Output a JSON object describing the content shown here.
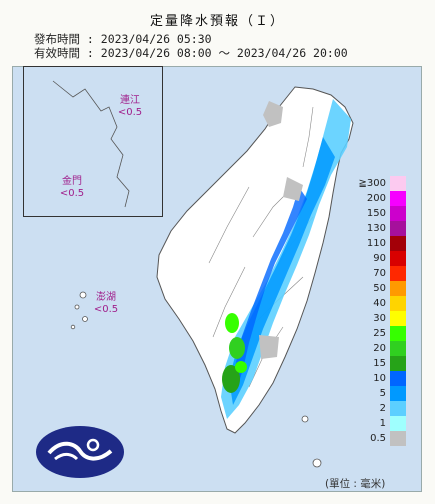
{
  "header": {
    "title": "定量降水預報（Ｉ）",
    "issue": "發布時間 : 2023/04/26 05:30",
    "valid": "有效時間 : 2023/04/26 08:00 ～ 2023/04/26 20:00"
  },
  "islands": [
    {
      "name": "連江",
      "value": "<0.5"
    },
    {
      "name": "金門",
      "value": "<0.5"
    },
    {
      "name": "澎湖",
      "value": "<0.5"
    }
  ],
  "legend": {
    "unit": "(單位 : 毫米)",
    "items": [
      {
        "label": "≧300",
        "color": "#fccaf0"
      },
      {
        "label": "200",
        "color": "#f600ff"
      },
      {
        "label": "150",
        "color": "#cc00cc"
      },
      {
        "label": "130",
        "color": "#a6109c"
      },
      {
        "label": "110",
        "color": "#a30008"
      },
      {
        "label": "90",
        "color": "#d80000"
      },
      {
        "label": "70",
        "color": "#ff2800"
      },
      {
        "label": "50",
        "color": "#ff9a00"
      },
      {
        "label": "40",
        "color": "#ffd400"
      },
      {
        "label": "30",
        "color": "#fefe00"
      },
      {
        "label": "25",
        "color": "#36ff00"
      },
      {
        "label": "20",
        "color": "#30d020"
      },
      {
        "label": "15",
        "color": "#26a318"
      },
      {
        "label": "10",
        "color": "#0066ff"
      },
      {
        "label": "5",
        "color": "#0099ff"
      },
      {
        "label": "2",
        "color": "#5ccfff"
      },
      {
        "label": "1",
        "color": "#9ffffe"
      },
      {
        "label": "0.5",
        "color": "#c1c1c1"
      }
    ]
  },
  "icons": {
    "logo": "cwb-logo"
  }
}
